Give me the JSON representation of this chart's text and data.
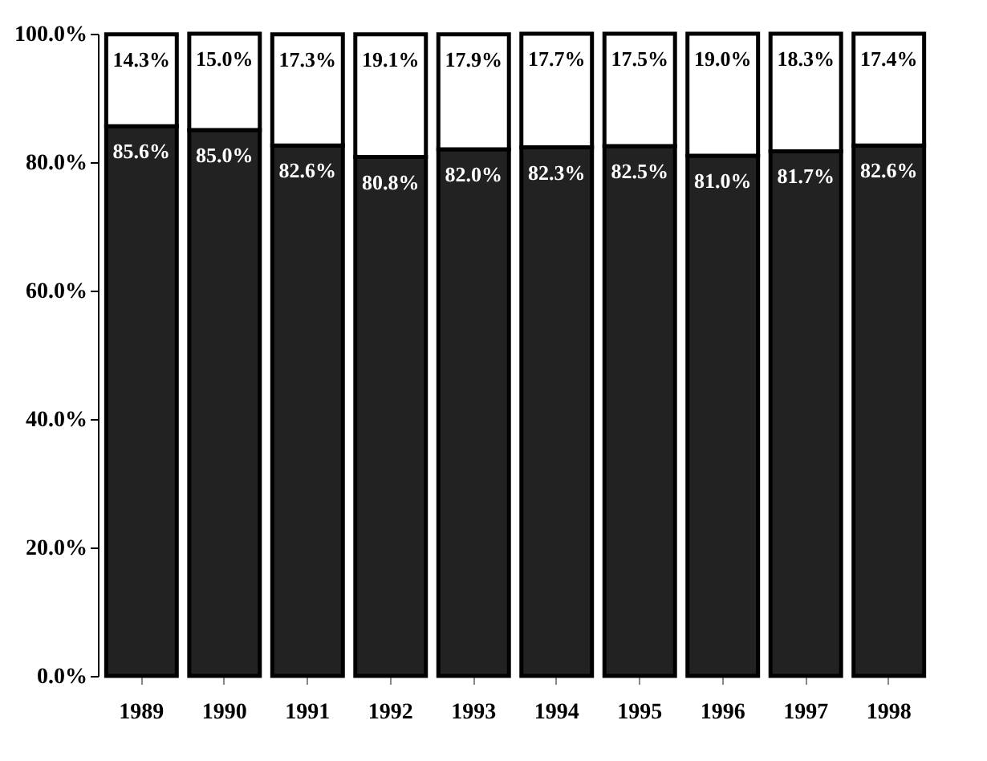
{
  "chart_data": {
    "type": "bar",
    "stacked": true,
    "categories": [
      "1989",
      "1990",
      "1991",
      "1992",
      "1993",
      "1994",
      "1995",
      "1996",
      "1997",
      "1998"
    ],
    "series": [
      {
        "color": "#222222",
        "values": [
          85.6,
          85.0,
          82.6,
          80.8,
          82.0,
          82.3,
          82.5,
          81.0,
          81.7,
          82.6
        ],
        "value_labels": [
          "85.6%",
          "85.0%",
          "82.6%",
          "80.8%",
          "82.0%",
          "82.3%",
          "82.5%",
          "81.0%",
          "81.7%",
          "82.6%"
        ]
      },
      {
        "color": "#ffffff",
        "values": [
          14.3,
          15.0,
          17.3,
          19.1,
          17.9,
          17.7,
          17.5,
          19.0,
          18.3,
          17.4
        ],
        "value_labels": [
          "14.3%",
          "15.0%",
          "17.3%",
          "19.1%",
          "17.9%",
          "17.7%",
          "17.5%",
          "19.0%",
          "18.3%",
          "17.4%"
        ]
      }
    ],
    "ylim": [
      0,
      100
    ],
    "yticks": [
      {
        "value": 0,
        "label": "0.0%"
      },
      {
        "value": 20,
        "label": "20.0%"
      },
      {
        "value": 40,
        "label": "40.0%"
      },
      {
        "value": 60,
        "label": "60.0%"
      },
      {
        "value": 80,
        "label": "80.0%"
      },
      {
        "value": 100,
        "label": "100.0%"
      }
    ],
    "grid": false
  }
}
